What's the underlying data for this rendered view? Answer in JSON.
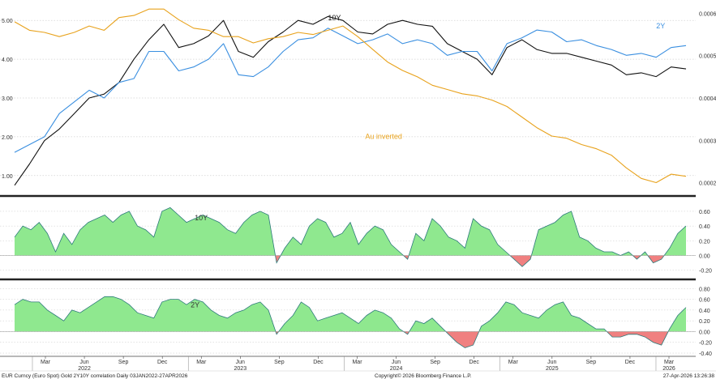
{
  "chart_data": [
    {
      "type": "line",
      "panel": "top",
      "left_axis_ticks": [
        "1.00",
        "2.00",
        "3.00",
        "4.00",
        "5.00"
      ],
      "left_ylim": [
        0.6,
        5.4
      ],
      "right_axis_ticks": [
        "0.0002",
        "0.0003",
        "0.0004",
        "0.0005",
        "0.0006"
      ],
      "right_ylim": [
        0.00018,
        0.00062
      ],
      "grid": true,
      "series": [
        {
          "name": "10Y",
          "axis": "left",
          "color": "#111111",
          "points": [
            [
              0,
              0.75
            ],
            [
              1,
              1.3
            ],
            [
              2,
              1.9
            ],
            [
              3,
              2.2
            ],
            [
              4,
              2.6
            ],
            [
              5,
              3.0
            ],
            [
              6,
              3.1
            ],
            [
              7,
              3.4
            ],
            [
              8,
              4.0
            ],
            [
              9,
              4.5
            ],
            [
              10,
              4.9
            ],
            [
              11,
              4.3
            ],
            [
              12,
              4.4
            ],
            [
              13,
              4.6
            ],
            [
              14,
              5.0
            ],
            [
              15,
              4.2
            ],
            [
              16,
              4.05
            ],
            [
              17,
              4.45
            ],
            [
              18,
              4.7
            ],
            [
              19,
              5.0
            ],
            [
              20,
              4.9
            ],
            [
              21,
              5.1
            ],
            [
              22,
              5.0
            ],
            [
              23,
              4.7
            ],
            [
              24,
              4.65
            ],
            [
              25,
              4.9
            ],
            [
              26,
              5.0
            ],
            [
              27,
              4.9
            ],
            [
              28,
              4.85
            ],
            [
              29,
              4.4
            ],
            [
              30,
              4.2
            ],
            [
              31,
              4.0
            ],
            [
              32,
              3.6
            ],
            [
              33,
              4.3
            ],
            [
              34,
              4.5
            ],
            [
              35,
              4.25
            ],
            [
              36,
              4.15
            ],
            [
              37,
              4.15
            ],
            [
              38,
              4.05
            ],
            [
              39,
              3.95
            ],
            [
              40,
              3.85
            ],
            [
              41,
              3.6
            ],
            [
              42,
              3.65
            ],
            [
              43,
              3.55
            ],
            [
              44,
              3.8
            ],
            [
              45,
              3.75
            ]
          ]
        },
        {
          "name": "2Y",
          "axis": "left",
          "color": "#3a8fe0",
          "points": [
            [
              0,
              1.6
            ],
            [
              1,
              1.8
            ],
            [
              2,
              2.0
            ],
            [
              3,
              2.6
            ],
            [
              4,
              2.9
            ],
            [
              5,
              3.2
            ],
            [
              6,
              3.0
            ],
            [
              7,
              3.4
            ],
            [
              8,
              3.5
            ],
            [
              9,
              4.2
            ],
            [
              10,
              4.2
            ],
            [
              11,
              3.7
            ],
            [
              12,
              3.8
            ],
            [
              13,
              4.0
            ],
            [
              14,
              4.4
            ],
            [
              15,
              3.6
            ],
            [
              16,
              3.55
            ],
            [
              17,
              3.8
            ],
            [
              18,
              4.2
            ],
            [
              19,
              4.5
            ],
            [
              20,
              4.55
            ],
            [
              21,
              4.8
            ],
            [
              22,
              4.6
            ],
            [
              23,
              4.4
            ],
            [
              24,
              4.5
            ],
            [
              25,
              4.65
            ],
            [
              26,
              4.4
            ],
            [
              27,
              4.5
            ],
            [
              28,
              4.4
            ],
            [
              29,
              4.1
            ],
            [
              30,
              4.2
            ],
            [
              31,
              4.2
            ],
            [
              32,
              3.7
            ],
            [
              33,
              4.4
            ],
            [
              34,
              4.55
            ],
            [
              35,
              4.75
            ],
            [
              36,
              4.7
            ],
            [
              37,
              4.45
            ],
            [
              38,
              4.5
            ],
            [
              39,
              4.35
            ],
            [
              40,
              4.25
            ],
            [
              41,
              4.1
            ],
            [
              42,
              4.15
            ],
            [
              43,
              4.05
            ],
            [
              44,
              4.3
            ],
            [
              45,
              4.35
            ]
          ]
        },
        {
          "name": "Au inverted",
          "axis": "right",
          "color": "#e8a21c",
          "points": [
            [
              0,
              0.00058
            ],
            [
              1,
              0.00056
            ],
            [
              2,
              0.000555
            ],
            [
              3,
              0.000545
            ],
            [
              4,
              0.000555
            ],
            [
              5,
              0.00057
            ],
            [
              6,
              0.00056
            ],
            [
              7,
              0.00059
            ],
            [
              8,
              0.000595
            ],
            [
              9,
              0.00061
            ],
            [
              10,
              0.00061
            ],
            [
              11,
              0.000585
            ],
            [
              12,
              0.000565
            ],
            [
              13,
              0.00056
            ],
            [
              14,
              0.000545
            ],
            [
              15,
              0.000545
            ],
            [
              16,
              0.00053
            ],
            [
              17,
              0.00054
            ],
            [
              18,
              0.000545
            ],
            [
              19,
              0.000555
            ],
            [
              20,
              0.00055
            ],
            [
              21,
              0.00056
            ],
            [
              22,
              0.00057
            ],
            [
              23,
              0.000545
            ],
            [
              24,
              0.000515
            ],
            [
              25,
              0.000485
            ],
            [
              26,
              0.000465
            ],
            [
              27,
              0.00045
            ],
            [
              28,
              0.00043
            ],
            [
              29,
              0.00042
            ],
            [
              30,
              0.00041
            ],
            [
              31,
              0.000405
            ],
            [
              32,
              0.000395
            ],
            [
              33,
              0.00038
            ],
            [
              34,
              0.000355
            ],
            [
              35,
              0.00033
            ],
            [
              36,
              0.00031
            ],
            [
              37,
              0.000305
            ],
            [
              38,
              0.00029
            ],
            [
              39,
              0.00028
            ],
            [
              40,
              0.000265
            ],
            [
              41,
              0.000235
            ],
            [
              42,
              0.00021
            ],
            [
              43,
              0.0002
            ],
            [
              44,
              0.00022
            ],
            [
              45,
              0.000215
            ]
          ]
        }
      ],
      "annotations": [
        {
          "text": "10Y",
          "color": "#111111",
          "at": [
            21,
            5.0
          ]
        },
        {
          "text": "2Y",
          "color": "#3a8fe0",
          "at": [
            43,
            4.8
          ]
        },
        {
          "text": "Au inverted",
          "color": "#e8a21c",
          "at": [
            23.5,
            1.95
          ]
        }
      ]
    },
    {
      "type": "area",
      "panel": "middle",
      "name": "10Y",
      "ylim": [
        -0.28,
        0.72
      ],
      "axis_ticks": [
        "-0.20",
        "0.00",
        "0.20",
        "0.40",
        "0.60"
      ],
      "positive_fill": "#8fe88f",
      "negative_fill": "#f08080",
      "values": [
        0.25,
        0.4,
        0.35,
        0.45,
        0.3,
        0.05,
        0.3,
        0.15,
        0.35,
        0.45,
        0.5,
        0.55,
        0.45,
        0.55,
        0.6,
        0.4,
        0.35,
        0.25,
        0.6,
        0.65,
        0.55,
        0.45,
        0.5,
        0.55,
        0.5,
        0.45,
        0.35,
        0.3,
        0.45,
        0.55,
        0.6,
        0.55,
        -0.1,
        0.1,
        0.25,
        0.15,
        0.4,
        0.5,
        0.45,
        0.25,
        0.3,
        0.45,
        0.15,
        0.3,
        0.4,
        0.35,
        0.15,
        0.05,
        -0.05,
        0.3,
        0.2,
        0.5,
        0.4,
        0.25,
        0.2,
        0.1,
        0.5,
        0.4,
        0.35,
        0.15,
        0.05,
        -0.05,
        -0.15,
        -0.05,
        0.35,
        0.4,
        0.45,
        0.55,
        0.6,
        0.25,
        0.2,
        0.1,
        0.05,
        0.05,
        0.0,
        0.05,
        -0.05,
        0.05,
        -0.1,
        -0.05,
        0.1,
        0.3,
        0.4
      ],
      "label": "10Y",
      "label_at": [
        22,
        0.48
      ]
    },
    {
      "type": "area",
      "panel": "bottom",
      "name": "2Y",
      "ylim": [
        -0.46,
        0.88
      ],
      "axis_ticks": [
        "-0.40",
        "-0.20",
        "0.00",
        "0.20",
        "0.40",
        "0.60",
        "0.80"
      ],
      "positive_fill": "#8fe88f",
      "negative_fill": "#f08080",
      "values": [
        0.5,
        0.6,
        0.55,
        0.55,
        0.4,
        0.3,
        0.2,
        0.4,
        0.35,
        0.45,
        0.55,
        0.65,
        0.65,
        0.6,
        0.5,
        0.35,
        0.3,
        0.25,
        0.55,
        0.6,
        0.6,
        0.5,
        0.6,
        0.55,
        0.4,
        0.3,
        0.25,
        0.35,
        0.4,
        0.5,
        0.55,
        0.4,
        -0.05,
        0.15,
        0.3,
        0.55,
        0.45,
        0.2,
        0.25,
        0.3,
        0.35,
        0.25,
        0.15,
        0.3,
        0.4,
        0.35,
        0.25,
        0.05,
        -0.05,
        0.2,
        0.15,
        0.25,
        0.1,
        -0.05,
        -0.2,
        -0.3,
        -0.25,
        0.1,
        0.2,
        0.35,
        0.55,
        0.5,
        0.35,
        0.3,
        0.25,
        0.4,
        0.5,
        0.55,
        0.3,
        0.25,
        0.15,
        0.05,
        0.05,
        -0.1,
        -0.1,
        -0.05,
        -0.05,
        -0.1,
        -0.2,
        -0.25,
        0.05,
        0.3,
        0.45
      ],
      "label": "2Y",
      "label_at": [
        21.5,
        0.45
      ]
    }
  ],
  "x_axis": {
    "month_ticks": [
      "Mar",
      "Jun",
      "Sep",
      "Dec",
      "Mar",
      "Jun",
      "Sep",
      "Dec",
      "Mar",
      "Jun",
      "Sep",
      "Dec",
      "Mar",
      "Jun",
      "Sep",
      "Dec",
      "Mar"
    ],
    "year_ticks": [
      "2022",
      "2023",
      "2024",
      "2025",
      "2026"
    ]
  },
  "footer": {
    "left": "EUR Curncy (Euro Spot) Gold 2Y10Y correlation Daily 03JAN2022-27APR2026",
    "center": "Copyright© 2026 Bloomberg Finance L.P.",
    "right": "27-Apr-2026 13:26:38"
  }
}
